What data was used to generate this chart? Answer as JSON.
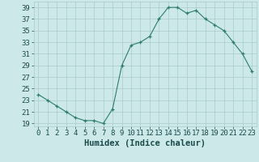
{
  "x": [
    0,
    1,
    2,
    3,
    4,
    5,
    6,
    7,
    8,
    9,
    10,
    11,
    12,
    13,
    14,
    15,
    16,
    17,
    18,
    19,
    20,
    21,
    22,
    23
  ],
  "y": [
    24,
    23,
    22,
    21,
    20,
    19.5,
    19.5,
    19,
    21.5,
    29,
    32.5,
    33,
    34,
    37,
    39,
    39,
    38,
    38.5,
    37,
    36,
    35,
    33,
    31,
    28
  ],
  "xlabel": "Humidex (Indice chaleur)",
  "xlim": [
    -0.5,
    23.5
  ],
  "ylim": [
    18.5,
    40
  ],
  "yticks": [
    19,
    21,
    23,
    25,
    27,
    29,
    31,
    33,
    35,
    37,
    39
  ],
  "xticks": [
    0,
    1,
    2,
    3,
    4,
    5,
    6,
    7,
    8,
    9,
    10,
    11,
    12,
    13,
    14,
    15,
    16,
    17,
    18,
    19,
    20,
    21,
    22,
    23
  ],
  "line_color": "#2d7d6e",
  "marker": "+",
  "bg_color": "#cce8e8",
  "grid_color": "#aacaca",
  "text_color": "#1a4a4a",
  "xlabel_fontsize": 7.5,
  "tick_fontsize": 6.5
}
